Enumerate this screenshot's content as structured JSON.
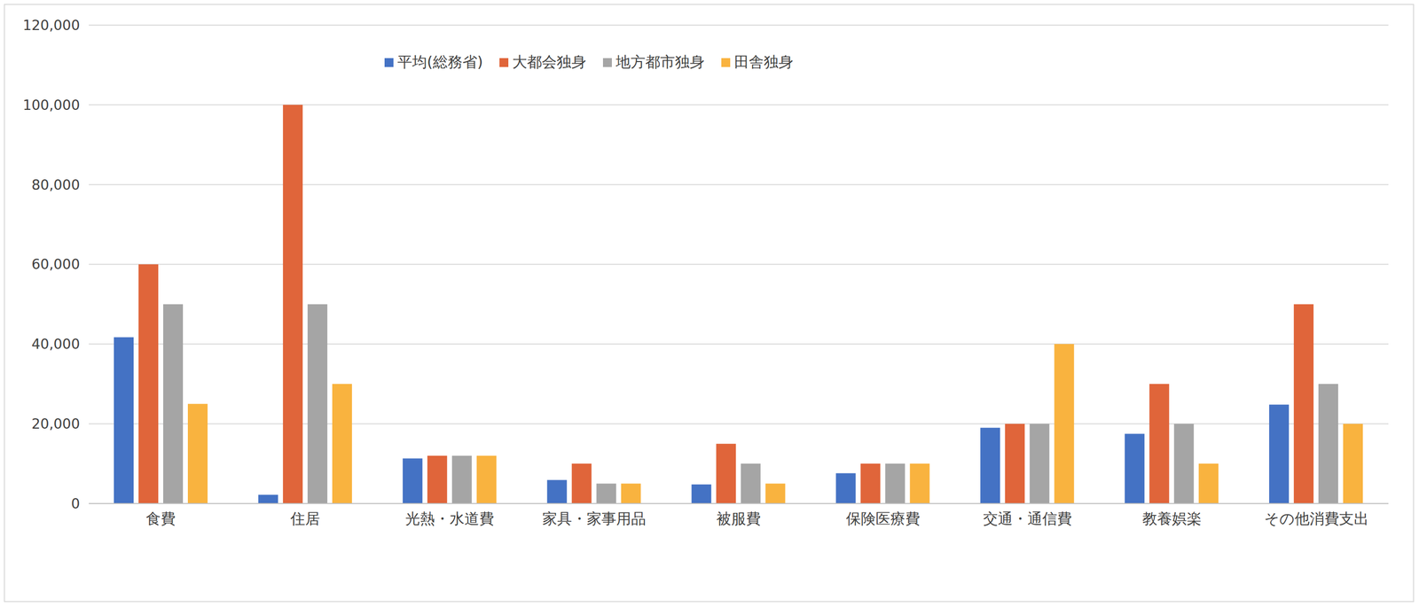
{
  "chart_data": {
    "type": "bar",
    "categories": [
      "食費",
      "住居",
      "光熱・水道費",
      "家具・家事用品",
      "被服費",
      "保険医療費",
      "交通・通信費",
      "教養娯楽",
      "その他消費支出"
    ],
    "series": [
      {
        "name": "平均(総務省)",
        "color": "#4472c4",
        "values": [
          41700,
          2200,
          11300,
          5900,
          4800,
          7600,
          19000,
          17500,
          24800
        ]
      },
      {
        "name": "大都会独身",
        "color": "#e0653a",
        "values": [
          60000,
          100000,
          12000,
          10000,
          15000,
          10000,
          20000,
          30000,
          50000
        ]
      },
      {
        "name": "地方都市独身",
        "color": "#a5a5a5",
        "values": [
          50000,
          50000,
          12000,
          5000,
          10000,
          10000,
          20000,
          20000,
          30000
        ]
      },
      {
        "name": "田舎独身",
        "color": "#f9b33f",
        "values": [
          25000,
          30000,
          12000,
          5000,
          5000,
          10000,
          40000,
          10000,
          20000
        ]
      }
    ],
    "ylim": [
      0,
      120000
    ],
    "yticks": [
      0,
      {
        "value": 20000,
        "label": "20,000"
      },
      {
        "value": 40000,
        "label": "40,000"
      },
      {
        "value": 60000,
        "label": "60,000"
      },
      {
        "value": 80000,
        "label": "80,000"
      },
      {
        "value": 100000,
        "label": "100,000"
      },
      {
        "value": 120000,
        "label": "120,000"
      }
    ],
    "grid": true,
    "legend": "top"
  }
}
